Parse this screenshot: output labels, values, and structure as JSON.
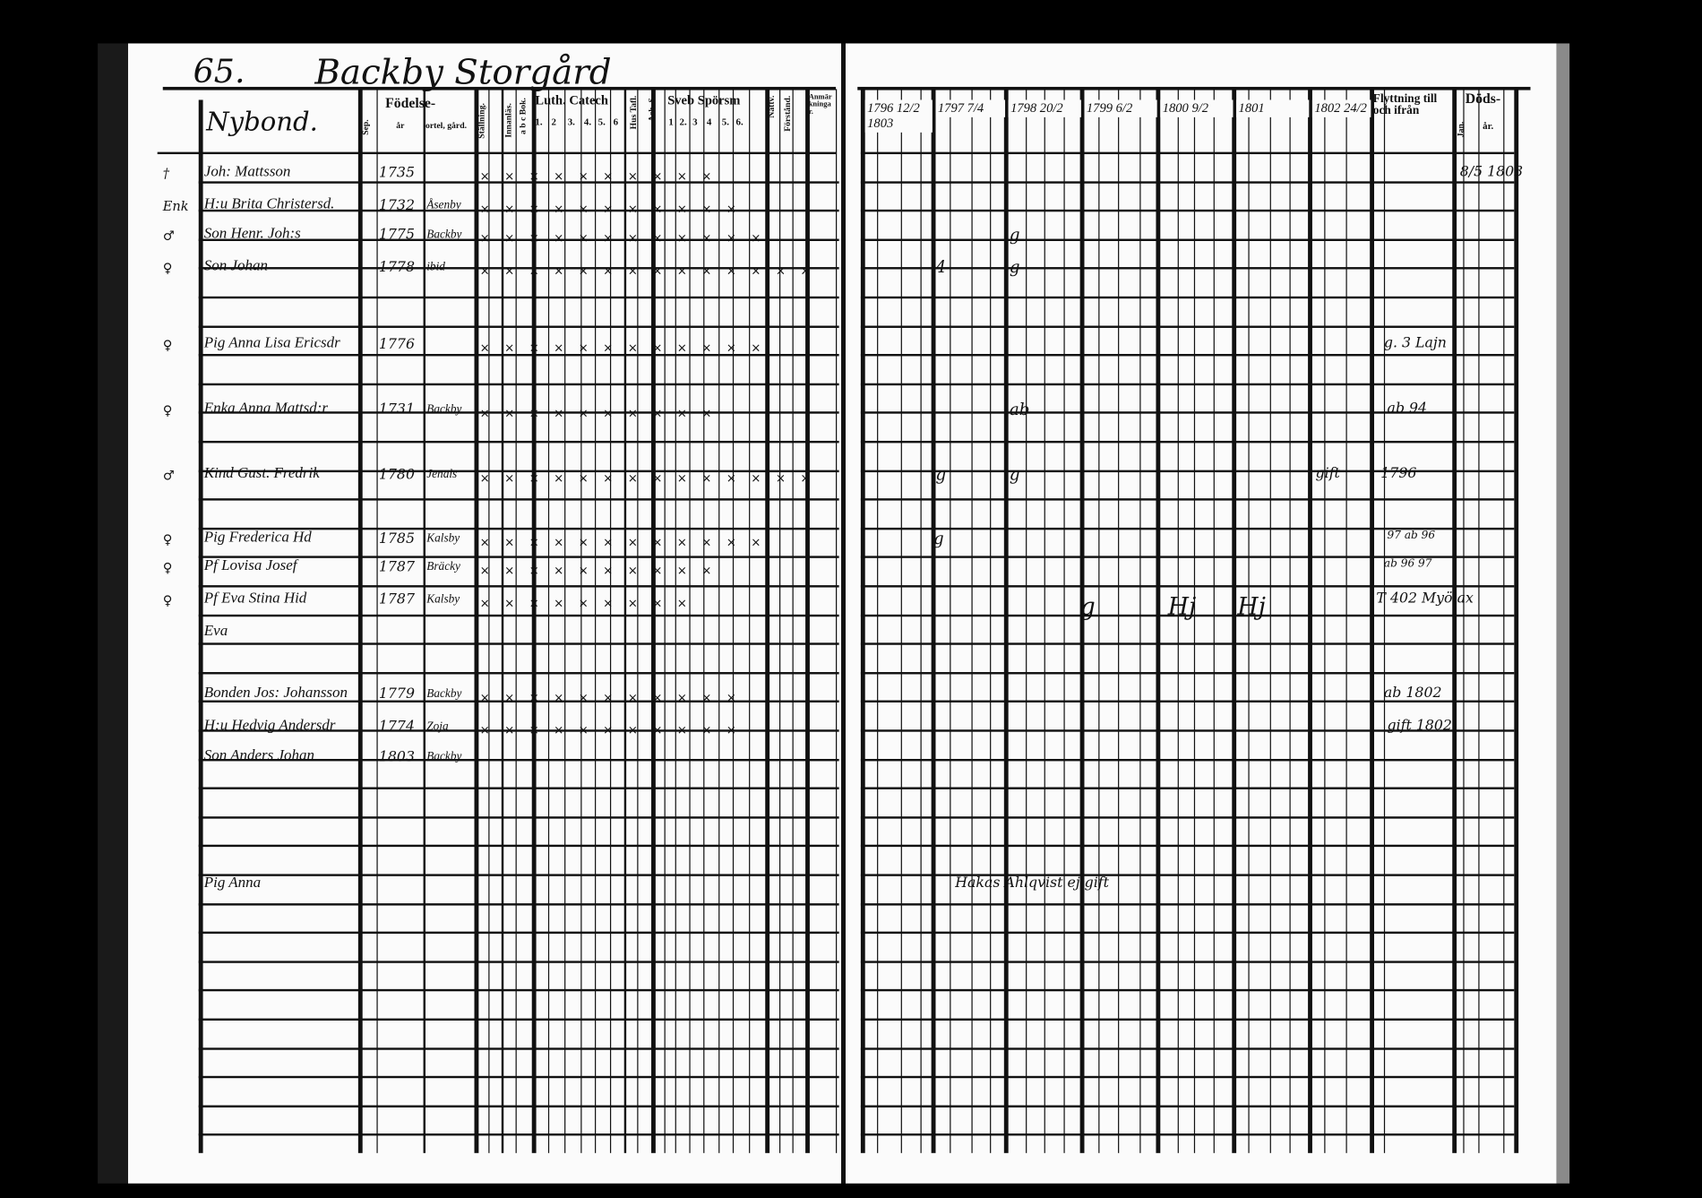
{
  "left_page": {
    "page_number": "65.",
    "place": "Backby Storgård",
    "village_label": "Nybond.",
    "headers": {
      "fodelse": "Födelse-",
      "fodelse_sub": [
        "Sep.",
        "år",
        "ortel, gård."
      ],
      "stallning": "Ställning.",
      "innanlas": "Innanläs.",
      "abc_bok": "a b c Bok.",
      "luth_catech": "Luth. Catech",
      "catech_cols": [
        "1.",
        "2",
        "3.",
        "4.",
        "5.",
        "6"
      ],
      "hus_tafl": "Hus Tafl.",
      "ach_s": "Ach. S.",
      "sveb_sporsm": "Sveb Spörsm",
      "sporsm_cols": [
        "1",
        "2.",
        "3",
        "4",
        "5.",
        "6."
      ],
      "nattv": "Nattv.",
      "forstand": "Förstånd.",
      "anmarkningar": "Anmärkningar."
    },
    "rows": [
      {
        "mark": "†",
        "name": "Joh: Mattsson",
        "year": "1735",
        "place": "",
        "tallies": "× × × × × × × × × ×"
      },
      {
        "mark": "Enk",
        "name": "H:u Brita Christersd.",
        "year": "1732",
        "place": "Åsenby",
        "tallies": "× × × × × × × × × × ×"
      },
      {
        "mark": "♂",
        "name": "Son Henr. Joh:s",
        "year": "1775",
        "place": "Backby",
        "tallies": "× × × × × × × × × × × ×"
      },
      {
        "mark": "♀",
        "name": "Son Johan",
        "year": "1778",
        "place": "ibid",
        "tallies": "× × × × × × × × × × × × × ×"
      },
      {
        "mark": "♀",
        "name": "Pig Anna Lisa Ericsdr",
        "year": "1776",
        "place": "",
        "tallies": "× × × × × × × × × × × ×"
      },
      {
        "mark": "♀",
        "name": "Enka Anna Mattsd:r",
        "year": "1731",
        "place": "Backby",
        "tallies": "× × × × × × × × × ×"
      },
      {
        "mark": "♂",
        "name": "Kind Gust. Fredrik",
        "year": "1780",
        "place": "Jenals",
        "tallies": "× × × × × × × × × × × × × ×"
      },
      {
        "mark": "♀",
        "name": "Pig Frederica Hd",
        "year": "1785",
        "place": "Kalsby",
        "tallies": "× × × × × × × × × × × ×"
      },
      {
        "mark": "♀",
        "name": "Pf Lovisa Josef",
        "year": "1787",
        "place": "Bräcky",
        "tallies": "× × × × × × × × × ×"
      },
      {
        "mark": "♀",
        "name": "Pf Eva Stina Hid",
        "year": "1787",
        "place": "Kalsby",
        "tallies": "× × × × × × × × ×"
      },
      {
        "mark": "",
        "name": "Eva",
        "year": "",
        "place": "",
        "tallies": ""
      },
      {
        "mark": "",
        "name": "Bonden Jos: Johansson",
        "year": "1779",
        "place": "Backby",
        "tallies": "× × × × × × × × × × ×"
      },
      {
        "mark": "",
        "name": "H:u Hedvig Andersdr",
        "year": "1774",
        "place": "Zoja",
        "tallies": "× × × × × × × × × × ×"
      },
      {
        "mark": "",
        "name": "Son Anders Johan",
        "year": "1803",
        "place": "Backby",
        "tallies": ""
      },
      {
        "mark": "",
        "name": "Pig Anna",
        "year": "",
        "place": "",
        "tallies": ""
      }
    ]
  },
  "right_page": {
    "year_headers": [
      "1796 12/2 1803",
      "1797 7/4",
      "1798 20/2",
      "1799 6/2",
      "1800 9/2",
      "1801",
      "1802 24/2"
    ],
    "flyttning": "Flyttning till och ifrån",
    "doda": "Döds-",
    "doda_sub": [
      "Jan.",
      "år."
    ],
    "annotations": [
      {
        "text": "8/5 1803",
        "row": 0
      },
      {
        "text": "g. 3 Lajn",
        "row": 4
      },
      {
        "text": "ab 94",
        "row": 5
      },
      {
        "text": "gift",
        "row": 6
      },
      {
        "text": "1796",
        "row": 6
      },
      {
        "text": "97 ab 96",
        "row": 7
      },
      {
        "text": "ab 96 97",
        "row": 8
      },
      {
        "text": "T 402 Myölax",
        "row": 9
      },
      {
        "text": "ab 1802",
        "row": 11
      },
      {
        "text": "gift 1802",
        "row": 12
      },
      {
        "text": "Hakas Ahlqvist ej gift",
        "row": 14
      }
    ],
    "year_marks": [
      {
        "text": "g",
        "row": 2
      },
      {
        "text": "4",
        "row": 3
      },
      {
        "text": "g",
        "row": 3
      },
      {
        "text": "ab",
        "row": 5
      },
      {
        "text": "g",
        "row": 6
      },
      {
        "text": "g",
        "row": 6
      },
      {
        "text": "g",
        "row": 7
      },
      {
        "text": "g",
        "row": 9
      },
      {
        "text": "Hj",
        "row": 9
      },
      {
        "text": "Hj",
        "row": 9
      }
    ]
  }
}
